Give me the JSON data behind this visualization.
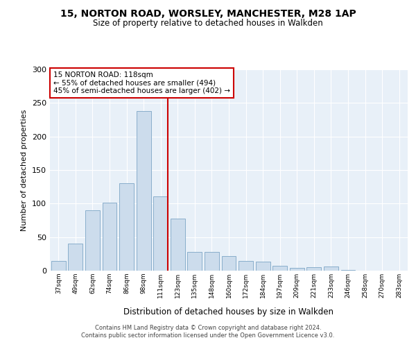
{
  "title_line1": "15, NORTON ROAD, WORSLEY, MANCHESTER, M28 1AP",
  "title_line2": "Size of property relative to detached houses in Walkden",
  "xlabel": "Distribution of detached houses by size in Walkden",
  "ylabel": "Number of detached properties",
  "categories": [
    "37sqm",
    "49sqm",
    "62sqm",
    "74sqm",
    "86sqm",
    "98sqm",
    "111sqm",
    "123sqm",
    "135sqm",
    "148sqm",
    "160sqm",
    "172sqm",
    "184sqm",
    "197sqm",
    "209sqm",
    "221sqm",
    "233sqm",
    "246sqm",
    "258sqm",
    "270sqm",
    "283sqm"
  ],
  "values": [
    15,
    40,
    90,
    101,
    130,
    238,
    111,
    78,
    28,
    28,
    22,
    15,
    13,
    7,
    4,
    5,
    6,
    1,
    0,
    0,
    0
  ],
  "bar_color": "#ccdcec",
  "bar_edge_color": "#89aecb",
  "reference_line_color": "#cc0000",
  "annotation_text": "15 NORTON ROAD: 118sqm\n← 55% of detached houses are smaller (494)\n45% of semi-detached houses are larger (402) →",
  "annotation_box_facecolor": "#ffffff",
  "annotation_box_edgecolor": "#cc0000",
  "ylim": [
    0,
    300
  ],
  "yticks": [
    0,
    50,
    100,
    150,
    200,
    250,
    300
  ],
  "background_color": "#e8f0f8",
  "footer_line1": "Contains HM Land Registry data © Crown copyright and database right 2024.",
  "footer_line2": "Contains public sector information licensed under the Open Government Licence v3.0."
}
